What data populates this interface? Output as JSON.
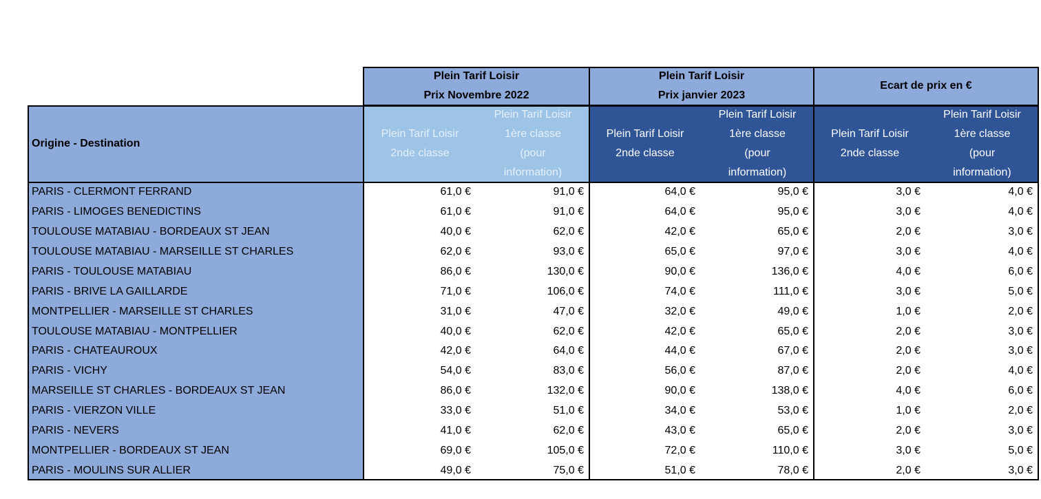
{
  "table": {
    "header_corner": "Origine - Destination",
    "groups": [
      {
        "lines": [
          "Plein Tarif Loisir",
          "Prix Novembre 2022"
        ],
        "columns": [
          [
            "Plein Tarif Loisir",
            "2nde classe"
          ],
          [
            "Plein Tarif Loisir",
            "1ère classe",
            "(pour",
            "information)"
          ]
        ]
      },
      {
        "lines": [
          "Plein Tarif Loisir",
          "Prix janvier 2023"
        ],
        "columns": [
          [
            "Plein Tarif Loisir",
            "2nde classe"
          ],
          [
            "Plein Tarif Loisir",
            "1ère classe",
            "(pour",
            "information)"
          ]
        ]
      },
      {
        "lines": [
          "Ecart de prix en €"
        ],
        "columns": [
          [
            "Plein Tarif Loisir",
            "2nde classe"
          ],
          [
            "Plein Tarif Loisir",
            "1ère classe",
            "(pour",
            "information)"
          ]
        ]
      }
    ],
    "rows": [
      [
        "PARIS - CLERMONT FERRAND",
        "61,0 €",
        "91,0 €",
        "64,0 €",
        "95,0 €",
        "3,0 €",
        "4,0 €"
      ],
      [
        "PARIS - LIMOGES BENEDICTINS",
        "61,0 €",
        "91,0 €",
        "64,0 €",
        "95,0 €",
        "3,0 €",
        "4,0 €"
      ],
      [
        "TOULOUSE MATABIAU - BORDEAUX ST JEAN",
        "40,0 €",
        "62,0 €",
        "42,0 €",
        "65,0 €",
        "2,0 €",
        "3,0 €"
      ],
      [
        "TOULOUSE MATABIAU - MARSEILLE ST CHARLES",
        "62,0 €",
        "93,0 €",
        "65,0 €",
        "97,0 €",
        "3,0 €",
        "4,0 €"
      ],
      [
        "PARIS - TOULOUSE MATABIAU",
        "86,0 €",
        "130,0 €",
        "90,0 €",
        "136,0 €",
        "4,0 €",
        "6,0 €"
      ],
      [
        "PARIS - BRIVE LA GAILLARDE",
        "71,0 €",
        "106,0 €",
        "74,0 €",
        "111,0 €",
        "3,0 €",
        "5,0 €"
      ],
      [
        "MONTPELLIER - MARSEILLE ST CHARLES",
        "31,0 €",
        "47,0 €",
        "32,0 €",
        "49,0 €",
        "1,0 €",
        "2,0 €"
      ],
      [
        "TOULOUSE MATABIAU - MONTPELLIER",
        "40,0 €",
        "62,0 €",
        "42,0 €",
        "65,0 €",
        "2,0 €",
        "3,0 €"
      ],
      [
        "PARIS - CHATEAUROUX",
        "42,0 €",
        "64,0 €",
        "44,0 €",
        "67,0 €",
        "2,0 €",
        "3,0 €"
      ],
      [
        "PARIS - VICHY",
        "54,0 €",
        "83,0 €",
        "56,0 €",
        "87,0 €",
        "2,0 €",
        "4,0 €"
      ],
      [
        "MARSEILLE ST CHARLES - BORDEAUX ST JEAN",
        "86,0 €",
        "132,0 €",
        "90,0 €",
        "138,0 €",
        "4,0 €",
        "6,0 €"
      ],
      [
        "PARIS - VIERZON VILLE",
        "33,0 €",
        "51,0 €",
        "34,0 €",
        "53,0 €",
        "1,0 €",
        "2,0 €"
      ],
      [
        "PARIS - NEVERS",
        "41,0 €",
        "62,0 €",
        "43,0 €",
        "65,0 €",
        "2,0 €",
        "3,0 €"
      ],
      [
        "MONTPELLIER - BORDEAUX ST JEAN",
        "69,0 €",
        "105,0 €",
        "72,0 €",
        "110,0 €",
        "3,0 €",
        "5,0 €"
      ],
      [
        "PARIS - MOULINS SUR ALLIER",
        "49,0 €",
        "75,0 €",
        "51,0 €",
        "78,0 €",
        "2,0 €",
        "3,0 €"
      ]
    ]
  }
}
